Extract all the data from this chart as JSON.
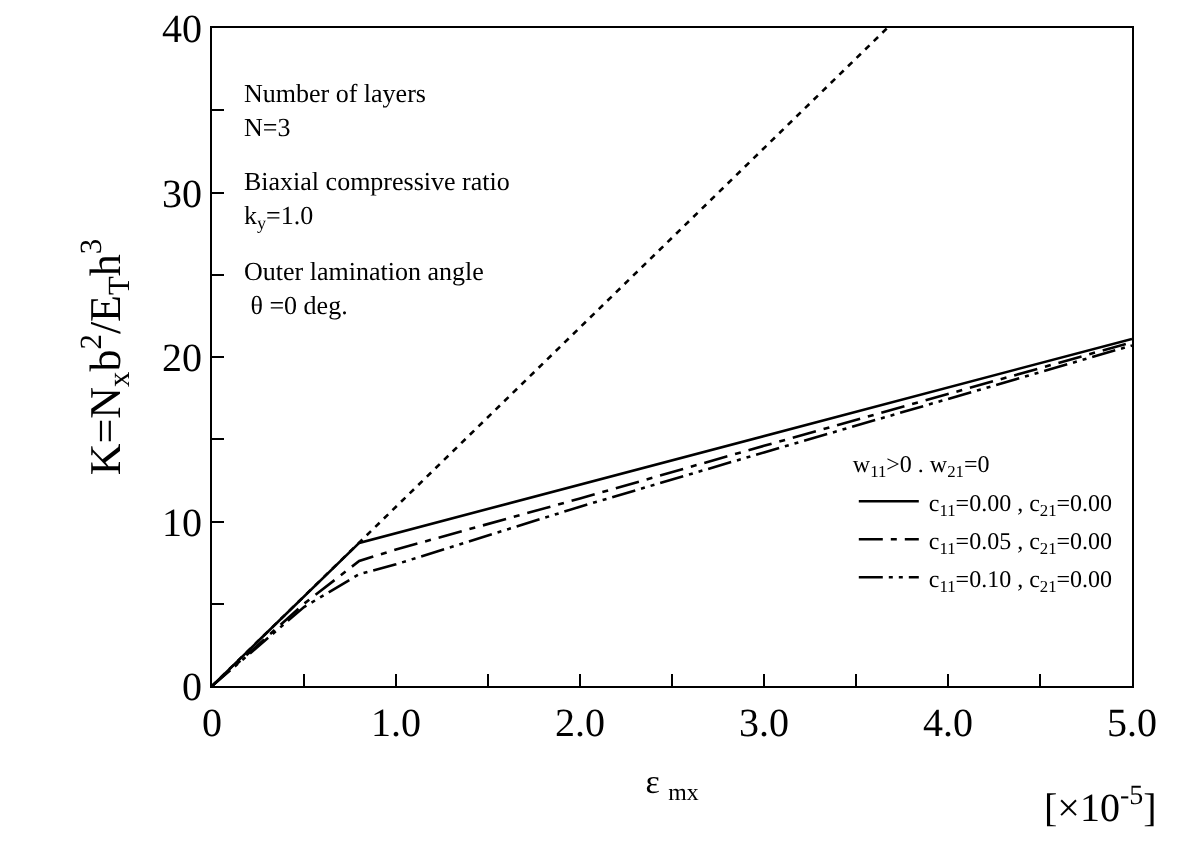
{
  "chart_data": {
    "type": "line",
    "xlabel": "ε $_{mx}$",
    "ylabel": "K=N$_{x}$b$^{2}$/E$_{T}$h$^{3}$",
    "legend_title": "w$_{11}$>0 . w$_{21}$=0",
    "annotations": [
      "Number of layers\nN=3",
      "Biaxial compressive ratio\nk$_{y}$=1.0",
      "Outer lamination angle\n θ =0 deg.",
      "[×10$^{-5}$]"
    ],
    "xlim": [
      0,
      5
    ],
    "ylim": [
      0,
      40
    ],
    "xticks": [
      0,
      {
        "value": 0.5,
        "label": null
      },
      {
        "value": 1,
        "label": "1.0"
      },
      {
        "value": 1.5,
        "label": null
      },
      {
        "value": 2,
        "label": "2.0"
      },
      {
        "value": 2.5,
        "label": null
      },
      {
        "value": 3,
        "label": "3.0"
      },
      {
        "value": 3.5,
        "label": null
      },
      {
        "value": 4,
        "label": "4.0"
      },
      {
        "value": 4.5,
        "label": null
      },
      {
        "value": 5,
        "label": "5.0"
      }
    ],
    "yticks": [
      0,
      {
        "value": 5,
        "label": null
      },
      10,
      {
        "value": 15,
        "label": null
      },
      20,
      {
        "value": 25,
        "label": null
      },
      30,
      {
        "value": 35,
        "label": null
      },
      40
    ],
    "grid": false,
    "legend": "bottom right",
    "marker": "none",
    "series": [
      {
        "color": "#000000",
        "line_style": "dotted",
        "x": [
          0,
          3.67
        ],
        "values": [
          0,
          40
        ]
      },
      {
        "name": "c$_{11}$=0.00 , c$_{21}$=0.00",
        "color": "#000000",
        "line_style": "solid",
        "x": [
          0,
          0.8,
          5
        ],
        "values": [
          0,
          8.7,
          21.1
        ]
      },
      {
        "name": "c$_{11}$=0.05 , c$_{21}$=0.00",
        "color": "#000000",
        "line_style": "dashdot",
        "x": [
          0,
          0.5,
          0.8,
          1,
          2,
          3,
          5
        ],
        "values": [
          0,
          5,
          7.6,
          8.3,
          11.4,
          14.6,
          20.9
        ]
      },
      {
        "name": "c$_{11}$=0.10 , c$_{21}$=0.00",
        "color": "#000000",
        "line_style": "dashdotdot",
        "x": [
          0,
          0.5,
          0.8,
          1,
          2,
          3,
          5
        ],
        "values": [
          0,
          4.8,
          6.8,
          7.4,
          10.9,
          14.2,
          20.7
        ]
      }
    ]
  }
}
